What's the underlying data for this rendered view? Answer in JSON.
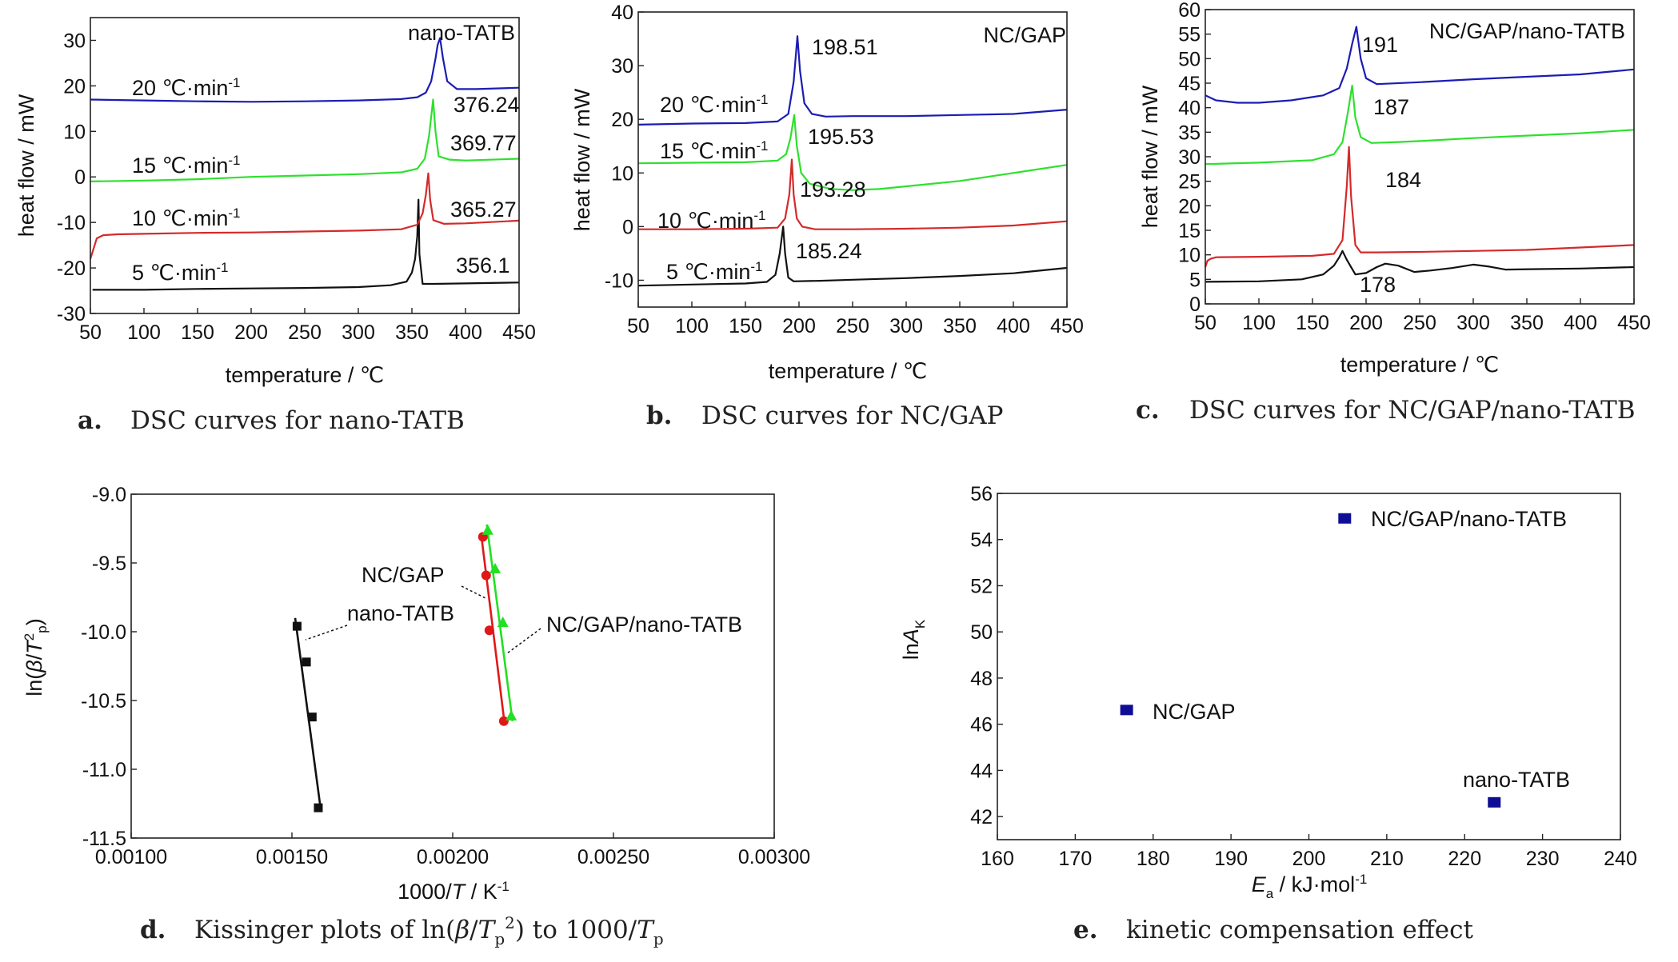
{
  "chart_data": [
    {
      "type": "line",
      "caption_letter": "a.",
      "caption": "DSC curves for nano-TATB",
      "title": "nano-TATB",
      "xlabel": "temperature / ℃",
      "ylabel": "heat flow / mW",
      "xlim": [
        50,
        450
      ],
      "ylim": [
        -30,
        35
      ],
      "xticks": [
        50,
        100,
        150,
        200,
        250,
        300,
        350,
        400,
        450
      ],
      "yticks": [
        -30,
        -20,
        -10,
        0,
        10,
        20,
        30
      ],
      "series": [
        {
          "name": "5 ℃·min-1",
          "rate": "5",
          "color": "#111111",
          "peak_label": "356.1",
          "x": [
            52,
            100,
            150,
            200,
            250,
            300,
            330,
            345,
            350,
            353,
            355,
            356.1,
            357,
            360,
            370,
            400,
            450
          ],
          "y": [
            -24.8,
            -24.8,
            -24.6,
            -24.5,
            -24.4,
            -24.2,
            -23.8,
            -23,
            -21,
            -18,
            -13,
            -5,
            -17,
            -23.5,
            -23.5,
            -23.4,
            -23.2
          ]
        },
        {
          "name": "10 ℃·min-1",
          "rate": "10",
          "color": "#d42a2a",
          "peak_label": "365.27",
          "x": [
            50,
            52,
            56,
            62,
            75,
            100,
            150,
            200,
            250,
            300,
            340,
            355,
            360,
            363,
            365.27,
            367,
            370,
            380,
            400,
            450
          ],
          "y": [
            -18,
            -16.5,
            -13.5,
            -12.8,
            -12.6,
            -12.5,
            -12.3,
            -12.2,
            -12,
            -11.8,
            -11.5,
            -10.5,
            -8,
            -4,
            0.8,
            -5,
            -9.5,
            -10.3,
            -10.2,
            -9.6
          ]
        },
        {
          "name": "15 ℃·min-1",
          "rate": "15",
          "color": "#2ee02e",
          "peak_label": "369.77",
          "x": [
            50,
            100,
            150,
            200,
            250,
            300,
            340,
            355,
            362,
            366,
            369.77,
            372,
            375,
            385,
            400,
            450
          ],
          "y": [
            -1,
            -0.8,
            -0.5,
            0,
            0.3,
            0.6,
            1,
            1.8,
            4,
            9,
            17,
            10,
            4.5,
            3.8,
            3.6,
            4
          ]
        },
        {
          "name": "20 ℃·min-1",
          "rate": "20",
          "color": "#1c1cb4",
          "peak_label": "376.24",
          "x": [
            50,
            100,
            150,
            200,
            250,
            300,
            340,
            355,
            363,
            368,
            372,
            374,
            376.24,
            379,
            383,
            392,
            410,
            450
          ],
          "y": [
            17,
            16.8,
            16.6,
            16.5,
            16.6,
            16.8,
            17.1,
            17.5,
            18.5,
            21,
            26,
            29,
            30.5,
            26,
            21,
            19.3,
            19.3,
            19.6
          ]
        }
      ]
    },
    {
      "type": "line",
      "caption_letter": "b.",
      "caption": "DSC curves for NC/GAP",
      "title": "NC/GAP",
      "xlabel": "temperature / ℃",
      "ylabel": "heat flow / mW",
      "xlim": [
        50,
        450
      ],
      "ylim": [
        -15,
        40
      ],
      "xticks": [
        50,
        100,
        150,
        200,
        250,
        300,
        350,
        400,
        450
      ],
      "yticks": [
        -10,
        0,
        10,
        20,
        30,
        40
      ],
      "series": [
        {
          "name": "5 ℃·min-1",
          "rate": "5",
          "color": "#111111",
          "peak_label": "185.24",
          "x": [
            50,
            100,
            150,
            170,
            178,
            182,
            185.24,
            187,
            190,
            195,
            220,
            250,
            300,
            350,
            400,
            450
          ],
          "y": [
            -11,
            -10.8,
            -10.6,
            -10.3,
            -9,
            -5,
            0,
            -5,
            -9.5,
            -10.2,
            -10.1,
            -9.9,
            -9.6,
            -9.2,
            -8.7,
            -7.7
          ]
        },
        {
          "name": "10 ℃·min-1",
          "rate": "10",
          "color": "#d42a2a",
          "peak_label": "193.28",
          "x": [
            50,
            100,
            150,
            180,
            187,
            191,
            193.28,
            195,
            198,
            203,
            215,
            250,
            300,
            350,
            400,
            450
          ],
          "y": [
            -0.5,
            -0.5,
            -0.4,
            -0.2,
            1.5,
            6,
            12.5,
            6,
            1.5,
            0,
            -0.5,
            -0.5,
            -0.4,
            -0.2,
            0.2,
            1
          ]
        },
        {
          "name": "15 ℃·min-1",
          "rate": "15",
          "color": "#2ee02e",
          "peak_label": "195.53",
          "x": [
            50,
            100,
            150,
            180,
            188,
            192,
            195.53,
            198,
            202,
            210,
            230,
            250,
            275,
            300,
            350,
            400,
            450
          ],
          "y": [
            11.8,
            11.9,
            12,
            12.3,
            13.5,
            16.5,
            20.8,
            15,
            10,
            8,
            7,
            6.8,
            7,
            7.5,
            8.5,
            10,
            11.5
          ]
        },
        {
          "name": "20 ℃·min-1",
          "rate": "20",
          "color": "#1c1cb4",
          "peak_label": "198.51",
          "x": [
            50,
            100,
            150,
            180,
            190,
            195,
            198.51,
            201,
            205,
            212,
            225,
            250,
            300,
            350,
            400,
            450
          ],
          "y": [
            19,
            19.2,
            19.3,
            19.6,
            21,
            27,
            35.5,
            29,
            23,
            21,
            20.5,
            20.6,
            20.6,
            20.8,
            21,
            21.8
          ]
        }
      ]
    },
    {
      "type": "line",
      "caption_letter": "c.",
      "caption": "DSC curves for NC/GAP/nano-TATB",
      "title": "NC/GAP/nano-TATB",
      "xlabel": "temperature / ℃",
      "ylabel": "heat flow / mW",
      "xlim": [
        50,
        450
      ],
      "ylim": [
        0,
        60
      ],
      "xticks": [
        50,
        100,
        150,
        200,
        250,
        300,
        350,
        400,
        450
      ],
      "yticks": [
        0,
        5,
        10,
        15,
        20,
        25,
        30,
        35,
        40,
        45,
        50,
        55,
        60
      ],
      "series": [
        {
          "name": "5 ℃·min-1",
          "rate": "5",
          "color": "#111111",
          "peak_label": "178",
          "x": [
            50,
            100,
            140,
            160,
            170,
            175,
            178,
            182,
            190,
            200,
            210,
            218,
            230,
            245,
            260,
            280,
            300,
            315,
            330,
            360,
            400,
            450
          ],
          "y": [
            4.5,
            4.6,
            5,
            6,
            7.8,
            9.5,
            10.8,
            9,
            6,
            6.3,
            7.5,
            8.2,
            7.8,
            6.5,
            6.8,
            7.3,
            8,
            7.6,
            7,
            7.1,
            7.2,
            7.5
          ]
        },
        {
          "name": "10 ℃·min-1",
          "rate": "10",
          "color": "#d42a2a",
          "peak_label": "184",
          "x": [
            50,
            52,
            55,
            60,
            100,
            150,
            170,
            178,
            182,
            184,
            186,
            190,
            195,
            210,
            250,
            300,
            350,
            400,
            450
          ],
          "y": [
            7.5,
            8.8,
            9.2,
            9.5,
            9.6,
            9.8,
            10.2,
            13,
            24,
            32,
            22,
            12,
            10.5,
            10.5,
            10.6,
            10.8,
            11,
            11.5,
            12
          ]
        },
        {
          "name": "15 ℃·min-1",
          "rate": "15",
          "color": "#2ee02e",
          "peak_label": "187",
          "x": [
            50,
            100,
            150,
            170,
            178,
            183,
            187,
            190,
            195,
            205,
            230,
            250,
            300,
            350,
            400,
            450
          ],
          "y": [
            28.5,
            28.8,
            29.3,
            30.5,
            33,
            39,
            44.5,
            38,
            34,
            32.8,
            33,
            33.2,
            33.8,
            34.3,
            34.8,
            35.5
          ]
        },
        {
          "name": "20 ℃·min-1",
          "rate": "20",
          "color": "#1c1cb4",
          "peak_label": "191",
          "x": [
            50,
            60,
            80,
            100,
            130,
            160,
            175,
            182,
            187,
            191,
            195,
            200,
            210,
            250,
            300,
            350,
            400,
            450
          ],
          "y": [
            42.5,
            41.5,
            41,
            41,
            41.5,
            42.5,
            44,
            48,
            53,
            56.5,
            50,
            46,
            44.8,
            45.2,
            45.8,
            46.3,
            46.8,
            47.8
          ]
        }
      ]
    },
    {
      "type": "scatter",
      "caption_letter": "d.",
      "caption_prefix": "Kissinger plots of ln(",
      "caption_beta": "β",
      "caption_slash": "/",
      "caption_T": "T",
      "caption_p": "p",
      "caption_sq": "2",
      "caption_mid": ") to 1000/",
      "caption_T2": "T",
      "caption_p2": "p",
      "xlabel_prefix": "1000/",
      "xlabel_T": "T",
      "xlabel_unit": " / K",
      "xlabel_exp": "-1",
      "ylabel_ln": "ln(",
      "ylabel_beta": "β",
      "ylabel_slash": "/",
      "ylabel_T": "T",
      "ylabel_sq": "2",
      "ylabel_p": "p",
      "ylabel_close": ")",
      "xlim": [
        0.001,
        0.003
      ],
      "ylim": [
        -11.5,
        -9.0
      ],
      "xticks": [
        "0.00100",
        "0.00150",
        "0.00200",
        "0.00250",
        "0.00300"
      ],
      "xtick_values": [
        0.001,
        0.0015,
        0.002,
        0.0025,
        0.003
      ],
      "yticks": [
        "-9.0",
        "-9.5",
        "-10.0",
        "-10.5",
        "-11.0",
        "-11.5"
      ],
      "ytick_values": [
        -9.0,
        -9.5,
        -10.0,
        -10.5,
        -11.0,
        -11.5
      ],
      "series": [
        {
          "name": "nano-TATB",
          "marker": "square",
          "color": "#111111",
          "x": [
            0.001516,
            0.001545,
            0.001563,
            0.001582
          ],
          "y": [
            -9.96,
            -10.22,
            -10.62,
            -11.28
          ],
          "fit_x": [
            0.00151,
            0.00159
          ],
          "fit_y": [
            -9.9,
            -11.3
          ]
        },
        {
          "name": "NC/GAP",
          "marker": "circle",
          "color": "#e01818",
          "x": [
            0.002094,
            0.002104,
            0.002114,
            0.002159
          ],
          "y": [
            -9.31,
            -9.59,
            -9.99,
            -10.65
          ],
          "fit_x": [
            0.002088,
            0.002162
          ],
          "fit_y": [
            -9.28,
            -10.68
          ]
        },
        {
          "name": "NC/GAP/nano-TATB",
          "marker": "triangle",
          "color": "#22e022",
          "x": [
            0.002109,
            0.002132,
            0.002156,
            0.002182
          ],
          "y": [
            -9.26,
            -9.54,
            -9.93,
            -10.61
          ],
          "fit_x": [
            0.002106,
            0.002186
          ],
          "fit_y": [
            -9.22,
            -10.65
          ]
        }
      ]
    },
    {
      "type": "scatter",
      "caption_letter": "e.",
      "caption": "kinetic compensation effect",
      "xlabel_E": "E",
      "xlabel_sub": "a",
      "xlabel_unit": " / kJ·mol",
      "xlabel_exp": "-1",
      "ylabel_ln": "ln",
      "ylabel_A": "A",
      "ylabel_sub": "K",
      "xlim": [
        160,
        240
      ],
      "ylim": [
        41,
        56
      ],
      "xticks": [
        160,
        170,
        180,
        190,
        200,
        210,
        220,
        230,
        240
      ],
      "yticks": [
        42,
        44,
        46,
        48,
        50,
        52,
        54,
        56
      ],
      "color": "#0d0d96",
      "points": [
        {
          "label": "NC/GAP/nano-TATB",
          "x": 204.6,
          "y": 54.9
        },
        {
          "label": "NC/GAP",
          "x": 176.6,
          "y": 46.6
        },
        {
          "label": "nano-TATB",
          "x": 223.8,
          "y": 42.6
        }
      ]
    }
  ]
}
